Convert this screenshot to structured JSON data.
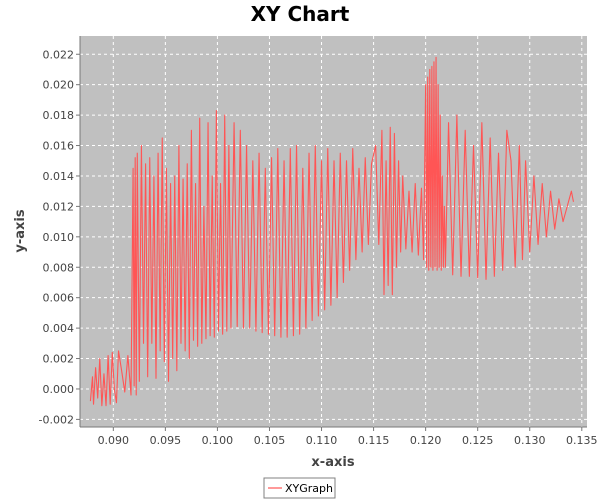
{
  "chart_data": {
    "type": "line",
    "title": "XY Chart",
    "xlabel": "x-axis",
    "ylabel": "y-axis",
    "xlim": [
      0.0868,
      0.1355
    ],
    "ylim": [
      -0.0025,
      0.0232
    ],
    "x_ticks": [
      "0.090",
      "0.095",
      "0.100",
      "0.105",
      "0.110",
      "0.115",
      "0.120",
      "0.125",
      "0.130",
      "0.135"
    ],
    "y_ticks": [
      "-0.002",
      "0.000",
      "0.002",
      "0.004",
      "0.006",
      "0.008",
      "0.010",
      "0.012",
      "0.014",
      "0.016",
      "0.018",
      "0.020",
      "0.022"
    ],
    "grid": true,
    "legend": "bottom",
    "colors": {
      "series": "#ff5555",
      "plot_bg": "#c0c0c0",
      "grid": "#ffffff"
    },
    "series": [
      {
        "name": "XYGraph",
        "points": [
          [
            0.0878,
            -0.0008
          ],
          [
            0.088,
            0.0008
          ],
          [
            0.0881,
            -0.001
          ],
          [
            0.0883,
            0.0014
          ],
          [
            0.0885,
            -0.0006
          ],
          [
            0.0887,
            0.002
          ],
          [
            0.0889,
            -0.0011
          ],
          [
            0.0891,
            0.001
          ],
          [
            0.0893,
            -0.0011
          ],
          [
            0.0895,
            0.0022
          ],
          [
            0.0897,
            -0.001
          ],
          [
            0.0899,
            0.0024
          ],
          [
            0.0901,
            0.0
          ],
          [
            0.0903,
            -0.0009
          ],
          [
            0.0905,
            0.0025
          ],
          [
            0.0908,
            0.0012
          ],
          [
            0.0911,
            -0.0002
          ],
          [
            0.0914,
            0.0022
          ],
          [
            0.0917,
            -0.0004
          ],
          [
            0.0919,
            0.0145
          ],
          [
            0.092,
            0.0002
          ],
          [
            0.0921,
            0.0152
          ],
          [
            0.0922,
            -0.0004
          ],
          [
            0.0923,
            0.0155
          ],
          [
            0.0925,
            0.0005
          ],
          [
            0.0927,
            0.016
          ],
          [
            0.0929,
            0.003
          ],
          [
            0.0931,
            0.0148
          ],
          [
            0.0933,
            0.0008
          ],
          [
            0.0935,
            0.0152
          ],
          [
            0.0937,
            0.003
          ],
          [
            0.0939,
            0.014
          ],
          [
            0.0941,
            0.0007
          ],
          [
            0.0943,
            0.0155
          ],
          [
            0.0945,
            0.0025
          ],
          [
            0.0947,
            0.0165
          ],
          [
            0.0949,
            0.0018
          ],
          [
            0.0951,
            0.0145
          ],
          [
            0.0953,
            0.0005
          ],
          [
            0.0955,
            0.0135
          ],
          [
            0.0957,
            0.002
          ],
          [
            0.0959,
            0.014
          ],
          [
            0.0961,
            0.0012
          ],
          [
            0.0963,
            0.016
          ],
          [
            0.0965,
            0.003
          ],
          [
            0.0967,
            0.0138
          ],
          [
            0.0969,
            0.0025
          ],
          [
            0.0971,
            0.0148
          ],
          [
            0.0973,
            0.002
          ],
          [
            0.0975,
            0.017
          ],
          [
            0.0977,
            0.0032
          ],
          [
            0.0979,
            0.0135
          ],
          [
            0.0981,
            0.0028
          ],
          [
            0.0983,
            0.0178
          ],
          [
            0.0985,
            0.003
          ],
          [
            0.0987,
            0.012
          ],
          [
            0.0989,
            0.0033
          ],
          [
            0.0991,
            0.0175
          ],
          [
            0.0993,
            0.0035
          ],
          [
            0.0995,
            0.014
          ],
          [
            0.0997,
            0.0034
          ],
          [
            0.0999,
            0.0183
          ],
          [
            0.1001,
            0.0038
          ],
          [
            0.1003,
            0.0135
          ],
          [
            0.1005,
            0.0036
          ],
          [
            0.1007,
            0.018
          ],
          [
            0.1009,
            0.0038
          ],
          [
            0.1011,
            0.016
          ],
          [
            0.1013,
            0.004
          ],
          [
            0.1016,
            0.0175
          ],
          [
            0.1019,
            0.0041
          ],
          [
            0.1022,
            0.017
          ],
          [
            0.1025,
            0.004
          ],
          [
            0.1028,
            0.016
          ],
          [
            0.1031,
            0.004
          ],
          [
            0.1034,
            0.015
          ],
          [
            0.1037,
            0.0038
          ],
          [
            0.104,
            0.0155
          ],
          [
            0.1043,
            0.0037
          ],
          [
            0.1046,
            0.0145
          ],
          [
            0.1049,
            0.0036
          ],
          [
            0.1052,
            0.0152
          ],
          [
            0.1055,
            0.0035
          ],
          [
            0.1058,
            0.0158
          ],
          [
            0.1061,
            0.0034
          ],
          [
            0.1064,
            0.015
          ],
          [
            0.1067,
            0.0034
          ],
          [
            0.107,
            0.0158
          ],
          [
            0.1073,
            0.0035
          ],
          [
            0.1076,
            0.016
          ],
          [
            0.1079,
            0.0036
          ],
          [
            0.1082,
            0.0145
          ],
          [
            0.1085,
            0.004
          ],
          [
            0.1088,
            0.0155
          ],
          [
            0.1091,
            0.0045
          ],
          [
            0.1094,
            0.016
          ],
          [
            0.1097,
            0.0048
          ],
          [
            0.11,
            0.015
          ],
          [
            0.1103,
            0.0052
          ],
          [
            0.1106,
            0.0158
          ],
          [
            0.1109,
            0.0055
          ],
          [
            0.1112,
            0.015
          ],
          [
            0.1115,
            0.006
          ],
          [
            0.1118,
            0.0155
          ],
          [
            0.1121,
            0.007
          ],
          [
            0.1124,
            0.015
          ],
          [
            0.1127,
            0.0078
          ],
          [
            0.113,
            0.0158
          ],
          [
            0.1133,
            0.0085
          ],
          [
            0.1136,
            0.0145
          ],
          [
            0.1139,
            0.009
          ],
          [
            0.1142,
            0.0152
          ],
          [
            0.1145,
            0.0095
          ],
          [
            0.1148,
            0.0148
          ],
          [
            0.1152,
            0.016
          ],
          [
            0.1155,
            0.0095
          ],
          [
            0.1158,
            0.017
          ],
          [
            0.116,
            0.0062
          ],
          [
            0.1162,
            0.015
          ],
          [
            0.1164,
            0.0068
          ],
          [
            0.1166,
            0.0172
          ],
          [
            0.1168,
            0.0062
          ],
          [
            0.117,
            0.0168
          ],
          [
            0.1172,
            0.008
          ],
          [
            0.1174,
            0.015
          ],
          [
            0.1176,
            0.009
          ],
          [
            0.1178,
            0.014
          ],
          [
            0.1181,
            0.0092
          ],
          [
            0.1184,
            0.013
          ],
          [
            0.1187,
            0.009
          ],
          [
            0.119,
            0.0135
          ],
          [
            0.1193,
            0.0088
          ],
          [
            0.1196,
            0.0132
          ],
          [
            0.1198,
            0.0085
          ],
          [
            0.12,
            0.02
          ],
          [
            0.1201,
            0.008
          ],
          [
            0.1202,
            0.0205
          ],
          [
            0.1203,
            0.0078
          ],
          [
            0.1204,
            0.021
          ],
          [
            0.1205,
            0.008
          ],
          [
            0.1206,
            0.0212
          ],
          [
            0.1207,
            0.0078
          ],
          [
            0.1208,
            0.0215
          ],
          [
            0.1209,
            0.008
          ],
          [
            0.121,
            0.0218
          ],
          [
            0.1211,
            0.0078
          ],
          [
            0.1212,
            0.02
          ],
          [
            0.1213,
            0.008
          ],
          [
            0.1214,
            0.018
          ],
          [
            0.1215,
            0.0078
          ],
          [
            0.1216,
            0.014
          ],
          [
            0.1217,
            0.008
          ],
          [
            0.1218,
            0.012
          ],
          [
            0.1219,
            0.008
          ],
          [
            0.1222,
            0.0175
          ],
          [
            0.1226,
            0.0075
          ],
          [
            0.123,
            0.018
          ],
          [
            0.1234,
            0.0074
          ],
          [
            0.1238,
            0.017
          ],
          [
            0.1242,
            0.0074
          ],
          [
            0.1246,
            0.016
          ],
          [
            0.125,
            0.0073
          ],
          [
            0.1254,
            0.0175
          ],
          [
            0.1258,
            0.0072
          ],
          [
            0.1262,
            0.0165
          ],
          [
            0.1266,
            0.0074
          ],
          [
            0.127,
            0.0155
          ],
          [
            0.1274,
            0.0078
          ],
          [
            0.1278,
            0.017
          ],
          [
            0.1282,
            0.015
          ],
          [
            0.1286,
            0.008
          ],
          [
            0.129,
            0.016
          ],
          [
            0.1293,
            0.0085
          ],
          [
            0.1296,
            0.015
          ],
          [
            0.13,
            0.009
          ],
          [
            0.1304,
            0.014
          ],
          [
            0.1308,
            0.0095
          ],
          [
            0.1312,
            0.0135
          ],
          [
            0.1316,
            0.01
          ],
          [
            0.132,
            0.013
          ],
          [
            0.1324,
            0.0105
          ],
          [
            0.1328,
            0.0125
          ],
          [
            0.1332,
            0.011
          ],
          [
            0.1336,
            0.012
          ],
          [
            0.134,
            0.013
          ],
          [
            0.1342,
            0.0123
          ]
        ]
      }
    ]
  }
}
